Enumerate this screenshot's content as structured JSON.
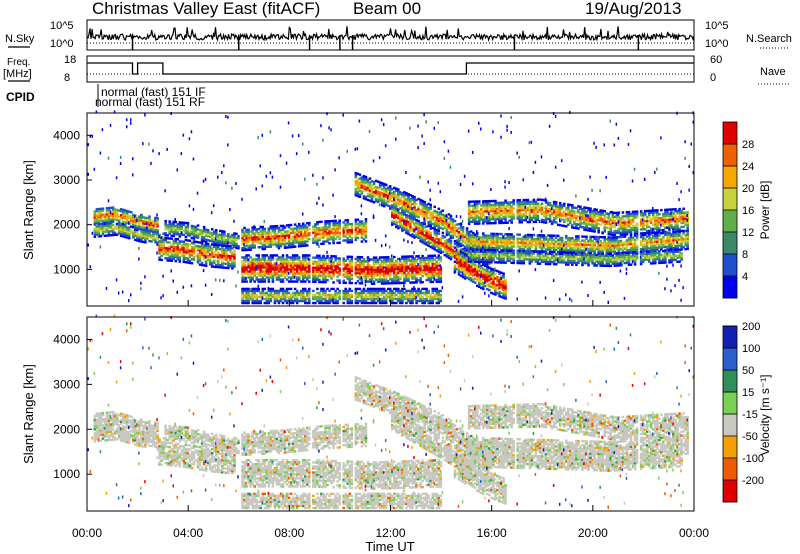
{
  "header": {
    "title": "Christmas Valley East (fitACF)",
    "beam_label": "Beam 00",
    "date": "19/Aug/2013"
  },
  "top_panels": {
    "nsky_label": "N.Sky",
    "nsky_ticks": [
      "10^5",
      "10^0"
    ],
    "nsearch_label": "N.Search",
    "nsearch_ticks": [
      "10^5",
      "10^0"
    ],
    "freq_label_line1": "Freq.",
    "freq_label_line2": "[MHz]",
    "freq_ticks": [
      "18",
      "8"
    ],
    "nave_label": "Nave",
    "nave_ticks": [
      "60",
      "0"
    ],
    "cpid_label": "CPID",
    "cpid_modes": [
      "normal (fast) 151 IF",
      "normal (fast) 151 RF"
    ]
  },
  "chart_data": [
    {
      "type": "heatmap",
      "parameter": "Power",
      "ylabel": "Slant Range [km]",
      "xlabel": "",
      "ylim": [
        180,
        4500
      ],
      "yticks": [
        1000,
        2000,
        3000,
        4000
      ],
      "xlim_hours": [
        0,
        24
      ],
      "colorbar_label": "Power [dB]",
      "colorbar_ticks": [
        "4",
        "8",
        "12",
        "16",
        "20",
        "24",
        "28"
      ],
      "colors": [
        "#0000ee",
        "#1f4fd0",
        "#3a8a6a",
        "#5fb04a",
        "#c8d23a",
        "#f5a800",
        "#f06000",
        "#e00000"
      ],
      "grid": false
    },
    {
      "type": "heatmap",
      "parameter": "Velocity",
      "ylabel": "Slant Range [km]",
      "xlabel": "Time UT",
      "ylim": [
        180,
        4500
      ],
      "yticks": [
        1000,
        2000,
        3000,
        4000
      ],
      "xlim_hours": [
        0,
        24
      ],
      "xtick_labels": [
        "00:00",
        "04:00",
        "08:00",
        "12:00",
        "16:00",
        "20:00",
        "00:00"
      ],
      "colorbar_label": "Velocity [m s⁻¹]",
      "colorbar_ticks": [
        "-200",
        "-100",
        "-50",
        "-15",
        "15",
        "50",
        "100",
        "200"
      ],
      "colors": [
        "#e00000",
        "#f05a00",
        "#f5a000",
        "#c8c8c0",
        "#7ad050",
        "#2f8f5a",
        "#2a5fd0",
        "#1020b0"
      ],
      "grid": false
    }
  ]
}
